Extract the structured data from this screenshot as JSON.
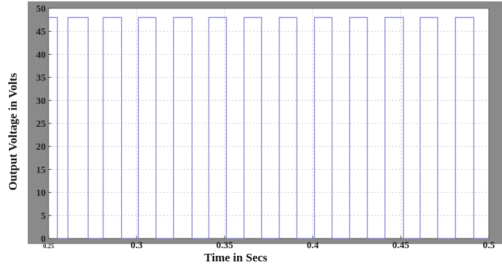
{
  "chart_data": {
    "type": "line",
    "title": "",
    "xlabel": "Time in Secs",
    "ylabel": "Output Voltage in Volts",
    "xlim": [
      0.25,
      0.5
    ],
    "ylim": [
      0,
      50
    ],
    "x_ticks": [
      0.25,
      0.3,
      0.35,
      0.4,
      0.45,
      0.5
    ],
    "x_tick_labels": [
      "0.25",
      "0.3",
      "0.35",
      "0.4",
      "0.45",
      "0.5"
    ],
    "y_ticks": [
      0,
      5,
      10,
      15,
      20,
      25,
      30,
      35,
      40,
      45,
      50
    ],
    "y_tick_labels": [
      "0",
      "5",
      "10",
      "15",
      "20",
      "25",
      "30",
      "35",
      "40",
      "45",
      "50"
    ],
    "grid": true,
    "series": [
      {
        "color": "#7a7acf",
        "waveform": "square",
        "high_value": 48,
        "low_value": 0,
        "pulse_x": [
          [
            0.25,
            0.255
          ],
          [
            0.261,
            0.2725
          ],
          [
            0.281,
            0.2915
          ],
          [
            0.301,
            0.311
          ],
          [
            0.321,
            0.3315
          ],
          [
            0.341,
            0.351
          ],
          [
            0.361,
            0.371
          ],
          [
            0.381,
            0.391
          ],
          [
            0.401,
            0.411
          ],
          [
            0.421,
            0.431
          ],
          [
            0.441,
            0.4515
          ],
          [
            0.461,
            0.471
          ],
          [
            0.481,
            0.4915
          ]
        ]
      }
    ]
  }
}
